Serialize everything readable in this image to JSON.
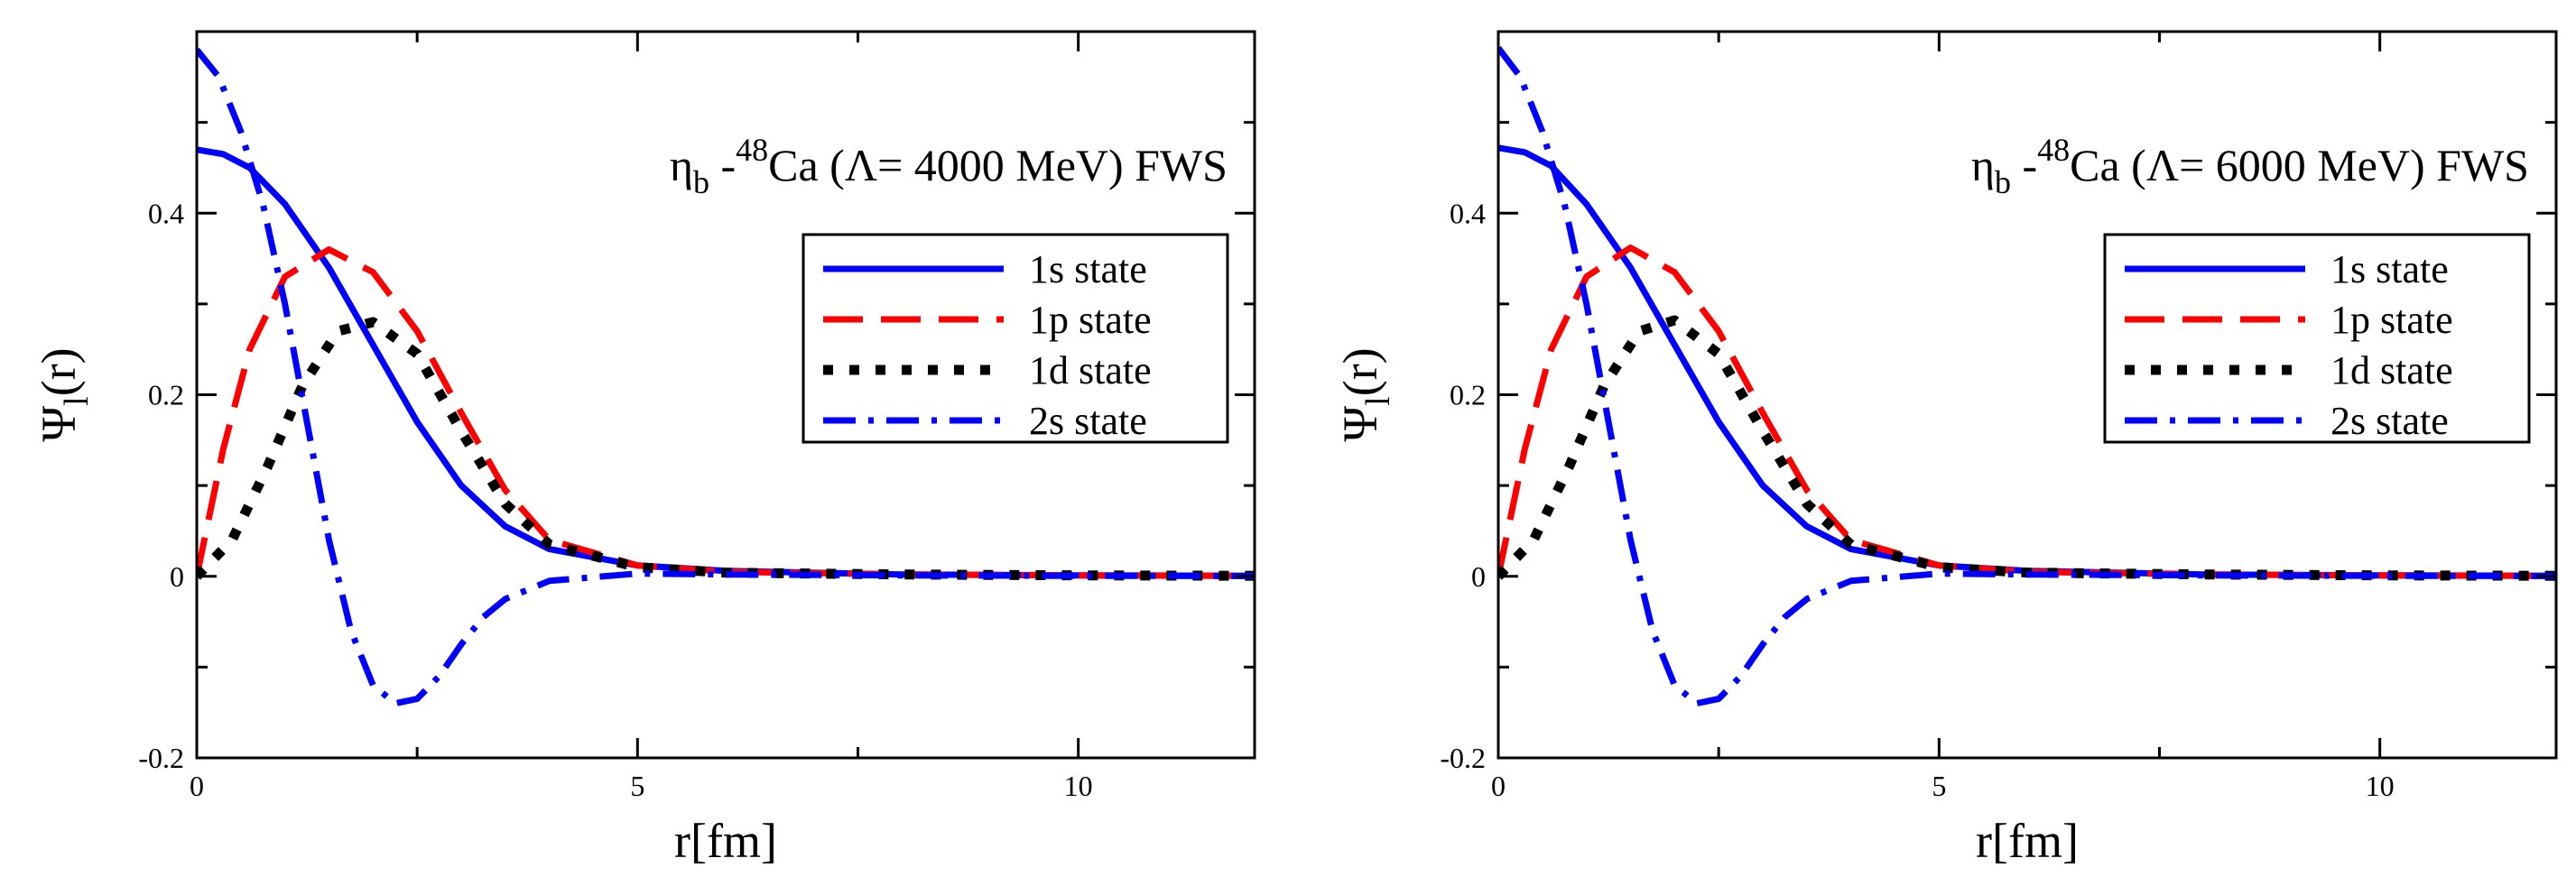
{
  "chart_data": [
    {
      "type": "line",
      "title": {
        "eta": "η",
        "sub": "b",
        "sup": "48",
        "text": " -",
        "rest": "Ca (Λ= 4000 MeV) FWS"
      },
      "xlabel": "r[fm]",
      "ylabel": {
        "main": "Ψ",
        "sub": "l",
        "rest": "(r)"
      },
      "xlim": [
        0,
        12
      ],
      "ylim": [
        -0.2,
        0.6
      ],
      "xticks": [
        {
          "v": 0,
          "label": "0"
        },
        {
          "v": 5,
          "label": "5"
        },
        {
          "v": 10,
          "label": "10"
        }
      ],
      "yticks": [
        {
          "v": -0.2,
          "label": "-0.2"
        },
        {
          "v": 0,
          "label": "0"
        },
        {
          "v": 0.2,
          "label": "0.2"
        },
        {
          "v": 0.4,
          "label": "0.4"
        }
      ],
      "legend_position": "upper-right",
      "series": [
        {
          "name": "1s state",
          "color": "#0000ff",
          "dash": "solid",
          "x": [
            0,
            0.3,
            0.6,
            1.0,
            1.5,
            2.0,
            2.5,
            3.0,
            3.5,
            4.0,
            5.0,
            6.0,
            8.0,
            10.0,
            12.0
          ],
          "y": [
            0.47,
            0.465,
            0.45,
            0.41,
            0.34,
            0.255,
            0.17,
            0.1,
            0.055,
            0.03,
            0.012,
            0.006,
            0.002,
            0.001,
            0.0005
          ]
        },
        {
          "name": "1p state",
          "color": "#ff0000",
          "dash": "long-dash",
          "x": [
            0,
            0.3,
            0.6,
            1.0,
            1.5,
            2.0,
            2.5,
            3.0,
            3.5,
            4.0,
            5.0,
            6.0,
            8.0,
            10.0,
            12.0
          ],
          "y": [
            0.0,
            0.14,
            0.25,
            0.33,
            0.36,
            0.335,
            0.27,
            0.18,
            0.095,
            0.04,
            0.012,
            0.005,
            0.002,
            0.001,
            0.0005
          ]
        },
        {
          "name": "1d state",
          "color": "#000000",
          "dash": "dotted",
          "x": [
            0,
            0.4,
            0.8,
            1.2,
            1.6,
            2.0,
            2.5,
            3.0,
            3.5,
            4.0,
            5.0,
            6.0,
            8.0,
            10.0,
            12.0
          ],
          "y": [
            0.0,
            0.04,
            0.12,
            0.21,
            0.27,
            0.28,
            0.245,
            0.16,
            0.08,
            0.035,
            0.01,
            0.004,
            0.002,
            0.001,
            0.0005
          ]
        },
        {
          "name": "2s state",
          "color": "#0000ff",
          "dash": "dash-dot",
          "x": [
            0,
            0.25,
            0.5,
            0.75,
            1.0,
            1.25,
            1.5,
            1.75,
            2.0,
            2.25,
            2.5,
            2.75,
            3.0,
            3.25,
            3.5,
            4.0,
            5.0,
            6.0,
            8.0,
            10.0,
            12.0
          ],
          "y": [
            0.58,
            0.55,
            0.49,
            0.41,
            0.3,
            0.17,
            0.04,
            -0.06,
            -0.12,
            -0.14,
            -0.135,
            -0.11,
            -0.075,
            -0.045,
            -0.025,
            -0.005,
            0.003,
            0.002,
            0.001,
            0.0005,
            0.0003
          ]
        }
      ]
    },
    {
      "type": "line",
      "title": {
        "eta": "η",
        "sub": "b",
        "sup": "48",
        "text": " -",
        "rest": "Ca (Λ= 6000 MeV) FWS"
      },
      "xlabel": "r[fm]",
      "ylabel": {
        "main": "Ψ",
        "sub": "l",
        "rest": "(r)"
      },
      "xlim": [
        0,
        12
      ],
      "ylim": [
        -0.2,
        0.6
      ],
      "xticks": [
        {
          "v": 0,
          "label": "0"
        },
        {
          "v": 5,
          "label": "5"
        },
        {
          "v": 10,
          "label": "10"
        }
      ],
      "yticks": [
        {
          "v": -0.2,
          "label": "-0.2"
        },
        {
          "v": 0,
          "label": "0"
        },
        {
          "v": 0.2,
          "label": "0.2"
        },
        {
          "v": 0.4,
          "label": "0.4"
        }
      ],
      "legend_position": "upper-right",
      "series": [
        {
          "name": "1s state",
          "color": "#0000ff",
          "dash": "solid",
          "x": [
            0,
            0.3,
            0.6,
            1.0,
            1.5,
            2.0,
            2.5,
            3.0,
            3.5,
            4.0,
            5.0,
            6.0,
            8.0,
            10.0,
            12.0
          ],
          "y": [
            0.472,
            0.467,
            0.452,
            0.41,
            0.34,
            0.255,
            0.17,
            0.1,
            0.055,
            0.03,
            0.012,
            0.006,
            0.002,
            0.001,
            0.0005
          ]
        },
        {
          "name": "1p state",
          "color": "#ff0000",
          "dash": "long-dash",
          "x": [
            0,
            0.3,
            0.6,
            1.0,
            1.5,
            2.0,
            2.5,
            3.0,
            3.5,
            4.0,
            5.0,
            6.0,
            8.0,
            10.0,
            12.0
          ],
          "y": [
            0.0,
            0.14,
            0.25,
            0.33,
            0.362,
            0.335,
            0.27,
            0.18,
            0.095,
            0.04,
            0.012,
            0.005,
            0.002,
            0.001,
            0.0005
          ]
        },
        {
          "name": "1d state",
          "color": "#000000",
          "dash": "dotted",
          "x": [
            0,
            0.4,
            0.8,
            1.2,
            1.6,
            2.0,
            2.5,
            3.0,
            3.5,
            4.0,
            5.0,
            6.0,
            8.0,
            10.0,
            12.0
          ],
          "y": [
            0.0,
            0.04,
            0.12,
            0.21,
            0.27,
            0.282,
            0.245,
            0.16,
            0.08,
            0.035,
            0.01,
            0.004,
            0.002,
            0.001,
            0.0005
          ]
        },
        {
          "name": "2s state",
          "color": "#0000ff",
          "dash": "dash-dot",
          "x": [
            0,
            0.25,
            0.5,
            0.75,
            1.0,
            1.25,
            1.5,
            1.75,
            2.0,
            2.25,
            2.5,
            2.75,
            3.0,
            3.25,
            3.5,
            4.0,
            5.0,
            6.0,
            8.0,
            10.0,
            12.0
          ],
          "y": [
            0.582,
            0.55,
            0.49,
            0.41,
            0.3,
            0.17,
            0.04,
            -0.06,
            -0.12,
            -0.14,
            -0.135,
            -0.11,
            -0.075,
            -0.045,
            -0.025,
            -0.005,
            0.003,
            0.002,
            0.001,
            0.0005,
            0.0003
          ]
        }
      ]
    }
  ]
}
